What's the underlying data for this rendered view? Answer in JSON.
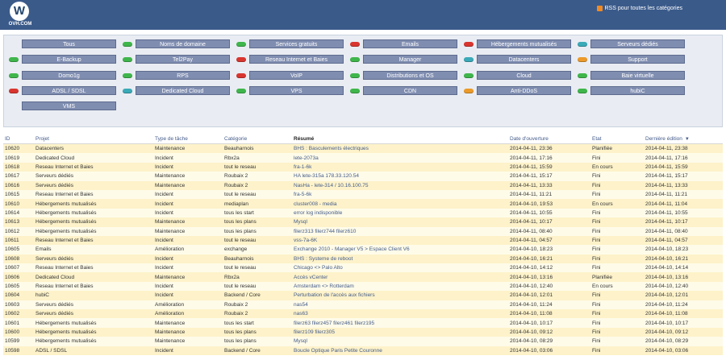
{
  "header": {
    "logo_text": "OVH.COM",
    "rss_label": "RSS pour toutes les catégories"
  },
  "categories": [
    {
      "label": "Tous",
      "status": ""
    },
    {
      "label": "Noms de domaine",
      "status": "green"
    },
    {
      "label": "Services gratuits",
      "status": "green"
    },
    {
      "label": "Emails",
      "status": "red"
    },
    {
      "label": "Hébergements mutualisés",
      "status": "red"
    },
    {
      "label": "Serveurs dédiés",
      "status": "blue"
    },
    {
      "label": "E-Backup",
      "status": "green"
    },
    {
      "label": "Tel2Pay",
      "status": "green"
    },
    {
      "label": "Reseau Internet et Baies",
      "status": "red"
    },
    {
      "label": "Manager",
      "status": "green"
    },
    {
      "label": "Datacenters",
      "status": "blue"
    },
    {
      "label": "Support",
      "status": "orange"
    },
    {
      "label": "Domo1g",
      "status": "green"
    },
    {
      "label": "RPS",
      "status": "green"
    },
    {
      "label": "VoIP",
      "status": "red"
    },
    {
      "label": "Distributions et OS",
      "status": "green"
    },
    {
      "label": "Cloud",
      "status": "green"
    },
    {
      "label": "Baie virtuelle",
      "status": "green"
    },
    {
      "label": "ADSL / SDSL",
      "status": "red"
    },
    {
      "label": "Dedicated Cloud",
      "status": "blue"
    },
    {
      "label": "VPS",
      "status": "green"
    },
    {
      "label": "CDN",
      "status": "green"
    },
    {
      "label": "Anti-DDoS",
      "status": "orange"
    },
    {
      "label": "hubiC",
      "status": "green"
    },
    {
      "label": "VMS",
      "status": ""
    }
  ],
  "table": {
    "headers": {
      "id": "ID",
      "projet": "Projet",
      "type": "Type de tâche",
      "categorie": "Catégorie",
      "resume": "Résumé",
      "date_ouverture": "Date d'ouverture",
      "etat": "Etat",
      "derniere_edition": "Dernière édition"
    },
    "rows": [
      [
        "10620",
        "Datacenters",
        "Maintenance",
        "Beauharnois",
        "BHS : Basculements électriques",
        "2014-04-11, 23:36",
        "Planifiée",
        "2014-04-11, 23:38"
      ],
      [
        "10619",
        "Dedicated Cloud",
        "Incident",
        "Rbx2a",
        "lete-2073a",
        "2014-04-11, 17:16",
        "Fini",
        "2014-04-11, 17:16"
      ],
      [
        "10618",
        "Reseau Internet et Baies",
        "Incident",
        "tout le reseau",
        "fra-1-6k",
        "2014-04-11, 15:59",
        "En cours",
        "2014-04-11, 15:59"
      ],
      [
        "10617",
        "Serveurs dédiés",
        "Maintenance",
        "Roubaix 2",
        "HA lete-315a 178.33.120.54",
        "2014-04-11, 15:17",
        "Fini",
        "2014-04-11, 15:17"
      ],
      [
        "10616",
        "Serveurs dédiés",
        "Maintenance",
        "Roubaix 2",
        "NasHa - lete-314 / 10.16.100.75",
        "2014-04-11, 13:33",
        "Fini",
        "2014-04-11, 13:33"
      ],
      [
        "10615",
        "Reseau Internet et Baies",
        "Incident",
        "tout le reseau",
        "fra-5-6k",
        "2014-04-11, 11:21",
        "Fini",
        "2014-04-11, 11:21"
      ],
      [
        "10610",
        "Hébergements mutualisés",
        "Incident",
        "mediaplan",
        "cluster008 - media",
        "2014-04-10, 19:53",
        "En cours",
        "2014-04-11, 11:04"
      ],
      [
        "10614",
        "Hébergements mutualisés",
        "Incident",
        "tous les start",
        "error log indisponible",
        "2014-04-11, 10:55",
        "Fini",
        "2014-04-11, 10:55"
      ],
      [
        "10613",
        "Hébergements mutualisés",
        "Maintenance",
        "tous les plans",
        "Mysql",
        "2014-04-11, 10:17",
        "Fini",
        "2014-04-11, 10:17"
      ],
      [
        "10612",
        "Hébergements mutualisés",
        "Maintenance",
        "tous les plans",
        "filerz313 filerz744 filerz610",
        "2014-04-11, 08:40",
        "Fini",
        "2014-04-11, 08:40"
      ],
      [
        "10611",
        "Reseau Internet et Baies",
        "Incident",
        "tout le reseau",
        "vss-7a-6K",
        "2014-04-11, 04:57",
        "Fini",
        "2014-04-11, 04:57"
      ],
      [
        "10605",
        "Emails",
        "Amélioration",
        "exchange",
        "Exchange 2010 - Manager V5 > Espace Client V6",
        "2014-04-10, 18:23",
        "Fini",
        "2014-04-10, 18:23"
      ],
      [
        "10608",
        "Serveurs dédiés",
        "Incident",
        "Beauharnois",
        "BHS : Systeme de reboot",
        "2014-04-10, 16:21",
        "Fini",
        "2014-04-10, 16:21"
      ],
      [
        "10607",
        "Reseau Internet et Baies",
        "Incident",
        "tout le reseau",
        "Chicago <> Palo Alto",
        "2014-04-10, 14:12",
        "Fini",
        "2014-04-10, 14:14"
      ],
      [
        "10606",
        "Dedicated Cloud",
        "Maintenance",
        "Rbx2a",
        "Accès vCenter",
        "2014-04-10, 13:16",
        "Planifiée",
        "2014-04-10, 13:16"
      ],
      [
        "10605",
        "Reseau Internet et Baies",
        "Incident",
        "tout le reseau",
        "Amsterdam <> Rotterdam",
        "2014-04-10, 12:40",
        "En cours",
        "2014-04-10, 12:40"
      ],
      [
        "10604",
        "hubiC",
        "Incident",
        "Backend / Core",
        "Perturbation de l'accès aux fichiers",
        "2014-04-10, 12:01",
        "Fini",
        "2014-04-10, 12:01"
      ],
      [
        "10603",
        "Serveurs dédiés",
        "Amélioration",
        "Roubaix 2",
        "nas54",
        "2014-04-10, 11:24",
        "Fini",
        "2014-04-10, 11:24"
      ],
      [
        "10602",
        "Serveurs dédiés",
        "Amélioration",
        "Roubaix 2",
        "nas63",
        "2014-04-10, 11:08",
        "Fini",
        "2014-04-10, 11:08"
      ],
      [
        "10601",
        "Hébergements mutualisés",
        "Maintenance",
        "tous les start",
        "filerz63 filerz457 filerz461 filerz195",
        "2014-04-10, 10:17",
        "Fini",
        "2014-04-10, 10:17"
      ],
      [
        "10600",
        "Hébergements mutualisés",
        "Maintenance",
        "tous les plans",
        "filerz109 filerz305",
        "2014-04-10, 09:12",
        "Fini",
        "2014-04-10, 09:12"
      ],
      [
        "10599",
        "Hébergements mutualisés",
        "Maintenance",
        "tous les plans",
        "Mysql",
        "2014-04-10, 08:29",
        "Fini",
        "2014-04-10, 08:29"
      ],
      [
        "10598",
        "ADSL / SDSL",
        "Incident",
        "Backend / Core",
        "Boucle Optique Paris Petite Couronne",
        "2014-04-10, 03:06",
        "Fini",
        "2014-04-10, 03:06"
      ]
    ]
  }
}
